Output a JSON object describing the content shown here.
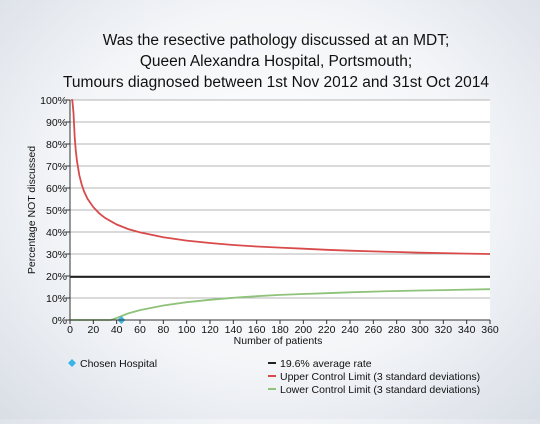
{
  "chart_data": {
    "type": "line",
    "title_lines": [
      "Was the resective pathology discussed at an MDT;",
      "Queen Alexandra Hospital, Portsmouth;",
      "Tumours diagnosed between 1st Nov 2012 and 31st Oct 2014"
    ],
    "xlabel": "Number of patients",
    "ylabel": "Percentage NOT discussed",
    "xlim": [
      0,
      360
    ],
    "ylim": [
      0,
      100
    ],
    "x_ticks": [
      0,
      20,
      40,
      60,
      80,
      100,
      120,
      140,
      160,
      180,
      200,
      220,
      240,
      260,
      280,
      300,
      320,
      340,
      360
    ],
    "y_ticks": [
      "0%",
      "10%",
      "20%",
      "30%",
      "40%",
      "50%",
      "60%",
      "70%",
      "80%",
      "90%",
      "100%"
    ],
    "y_tick_values": [
      0,
      10,
      20,
      30,
      40,
      50,
      60,
      70,
      80,
      90,
      100
    ],
    "grid": true,
    "average_rate": {
      "name": "19.6% average rate",
      "y": 19.6,
      "color": "#222222"
    },
    "series": [
      {
        "name": "Upper Control Limit (3 standard deviations)",
        "color": "#d94b4b",
        "x": [
          1,
          2,
          3,
          4,
          5,
          6,
          8,
          10,
          12,
          15,
          20,
          25,
          30,
          40,
          50,
          60,
          80,
          100,
          120,
          140,
          160,
          180,
          200,
          220,
          240,
          260,
          280,
          300,
          320,
          340,
          360
        ],
        "y": [
          100,
          100,
          94.1,
          83.1,
          76.9,
          72.2,
          65.8,
          61.6,
          58.5,
          55.1,
          51.3,
          48.5,
          46.4,
          43.4,
          41.3,
          39.8,
          37.6,
          36.1,
          35.0,
          34.1,
          33.4,
          32.9,
          32.4,
          31.9,
          31.5,
          31.2,
          30.9,
          30.6,
          30.4,
          30.2,
          30.0
        ]
      },
      {
        "name": "Lower Control Limit (3 standard deviations)",
        "color": "#8fc27a",
        "x": [
          0,
          35,
          40,
          50,
          60,
          80,
          100,
          120,
          140,
          160,
          180,
          200,
          220,
          240,
          260,
          280,
          300,
          320,
          340,
          360
        ],
        "y": [
          0,
          0,
          0.9,
          3.0,
          4.5,
          6.6,
          8.1,
          9.2,
          10.1,
          10.8,
          11.4,
          11.8,
          12.2,
          12.6,
          12.9,
          13.2,
          13.4,
          13.6,
          13.8,
          14.0
        ]
      }
    ],
    "chosen_hospital": {
      "name": "Chosen Hospital",
      "x": 44,
      "y": 0,
      "color": "#3ab3e6"
    },
    "legend_placement": "bottom"
  }
}
